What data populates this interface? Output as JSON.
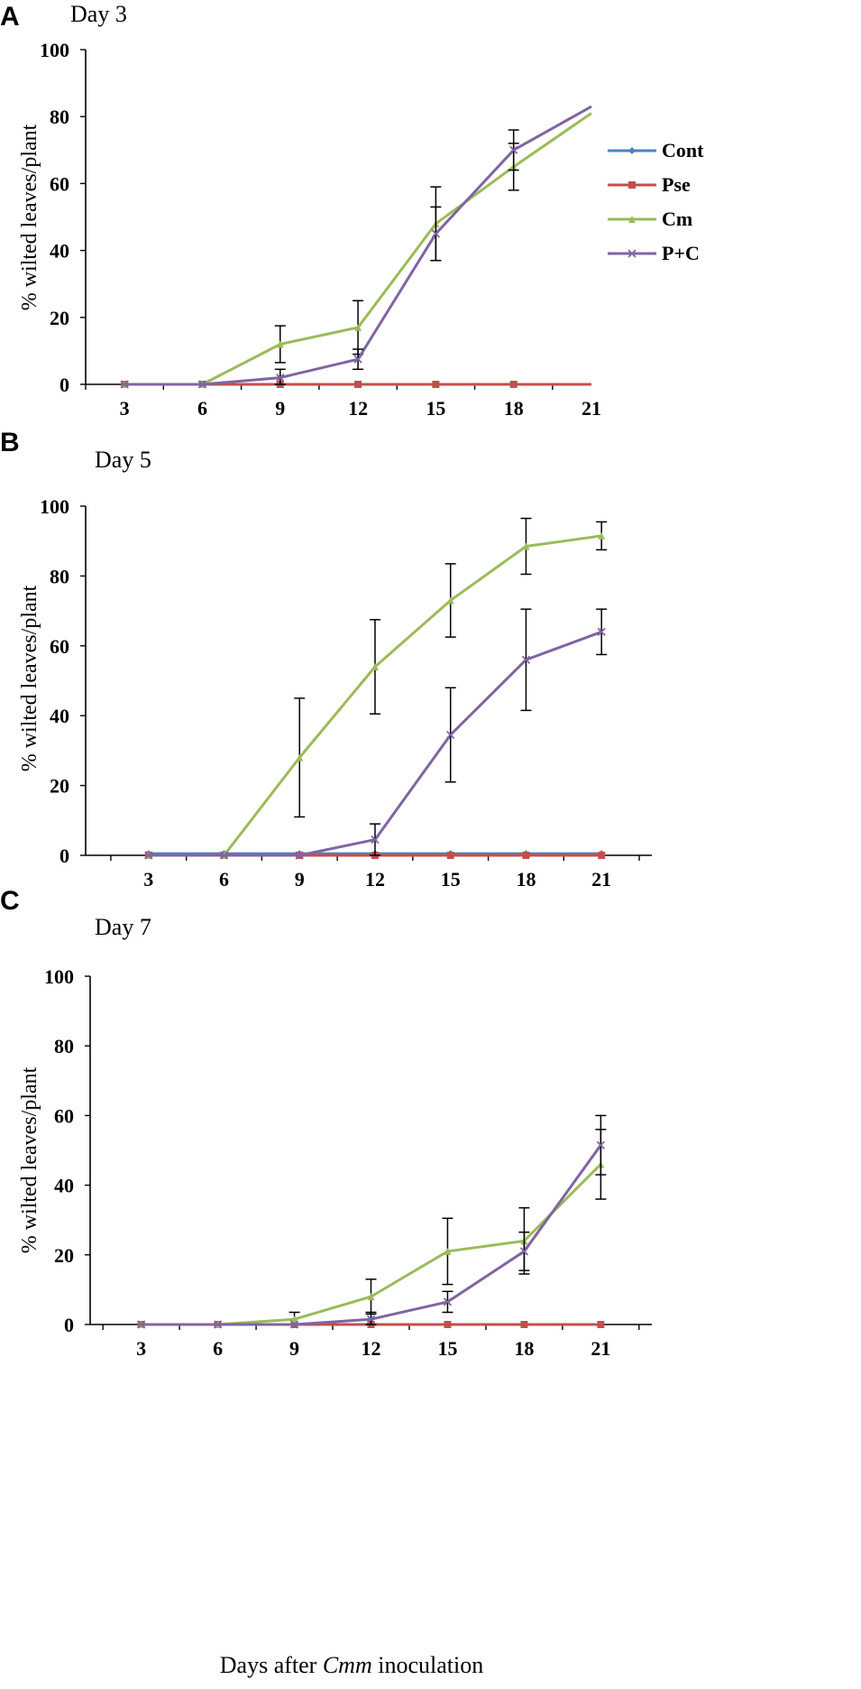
{
  "xlabel_parts": [
    "Days after ",
    "Cmm",
    " inoculation"
  ],
  "series_styles": [
    {
      "name": "Cont",
      "color": "#4f81bd",
      "marker": "diamond"
    },
    {
      "name": "Pse",
      "color": "#c0504d",
      "marker": "square"
    },
    {
      "name": "Cm",
      "color": "#9bbb59",
      "marker": "triangle"
    },
    {
      "name": "P+C",
      "color": "#8064a2",
      "marker": "x"
    }
  ],
  "chart_data": [
    {
      "type": "line",
      "panel": "A",
      "title": "Day 3",
      "ylabel": "% wilted leaves/plant",
      "xlabel": "",
      "x": [
        3,
        6,
        9,
        12,
        15,
        18,
        21
      ],
      "ylim": [
        0,
        100
      ],
      "yticks": [
        0,
        20,
        40,
        60,
        80,
        100
      ],
      "legend": {
        "position": "right",
        "entries": [
          "Cont",
          "Pse",
          "Cm",
          "P+C"
        ]
      },
      "series": [
        {
          "name": "Cont",
          "values": [
            0,
            0,
            0,
            0,
            0,
            0,
            0
          ],
          "errors": null,
          "markers_through": 18
        },
        {
          "name": "Pse",
          "values": [
            0,
            0,
            0,
            0,
            0,
            0,
            0
          ],
          "errors": null,
          "markers_through": 18
        },
        {
          "name": "Cm",
          "values": [
            0,
            0,
            12,
            17,
            48,
            65,
            81
          ],
          "errors": [
            0,
            0,
            5.5,
            8,
            11,
            7,
            0
          ],
          "markers_through": 18
        },
        {
          "name": "P+C",
          "values": [
            0,
            0,
            2,
            7.5,
            45,
            70,
            83
          ],
          "errors": [
            0,
            0,
            2.5,
            3,
            8,
            6,
            0
          ],
          "markers_through": 18
        }
      ]
    },
    {
      "type": "line",
      "panel": "B",
      "title": "Day 5",
      "ylabel": "% wilted leaves/plant",
      "xlabel": "",
      "x": [
        3,
        6,
        9,
        12,
        15,
        18,
        21
      ],
      "ylim": [
        0,
        100
      ],
      "yticks": [
        0,
        20,
        40,
        60,
        80,
        100
      ],
      "legend": null,
      "series": [
        {
          "name": "Cont",
          "values": [
            0.5,
            0.5,
            0.5,
            0.5,
            0.5,
            0.5,
            0.5
          ],
          "errors": null,
          "markers_through": 21
        },
        {
          "name": "Pse",
          "values": [
            0,
            0,
            0,
            0,
            0,
            0,
            0
          ],
          "errors": null,
          "markers_through": 21
        },
        {
          "name": "Cm",
          "values": [
            0,
            0,
            28,
            54,
            73,
            88.5,
            91.5
          ],
          "errors": [
            0,
            0,
            17,
            13.5,
            10.5,
            8,
            4
          ],
          "markers_through": 21
        },
        {
          "name": "P+C",
          "values": [
            0,
            0,
            0,
            4.5,
            34.5,
            56,
            64
          ],
          "errors": [
            0,
            0,
            0,
            4.5,
            13.5,
            14.5,
            6.5
          ],
          "markers_through": 21
        }
      ]
    },
    {
      "type": "line",
      "panel": "C",
      "title": "Day 7",
      "ylabel": "% wilted leaves/plant",
      "xlabel": "",
      "x": [
        3,
        6,
        9,
        12,
        15,
        18,
        21
      ],
      "ylim": [
        0,
        100
      ],
      "yticks": [
        0,
        20,
        40,
        60,
        80,
        100
      ],
      "legend": null,
      "series": [
        {
          "name": "Cont",
          "values": [
            0,
            0,
            0,
            0,
            0,
            0,
            0
          ],
          "errors": null,
          "markers_through": 21
        },
        {
          "name": "Pse",
          "values": [
            0,
            0,
            0,
            0,
            0,
            0,
            0
          ],
          "errors": null,
          "markers_through": 21
        },
        {
          "name": "Cm",
          "values": [
            0,
            0,
            1.5,
            8,
            21,
            24,
            46
          ],
          "errors": [
            0,
            0,
            2,
            5,
            9.5,
            9.5,
            10
          ],
          "markers_through": 21
        },
        {
          "name": "P+C",
          "values": [
            0,
            0,
            0,
            1.5,
            6.5,
            21,
            51.5
          ],
          "errors": [
            0,
            0,
            0,
            2,
            3,
            5.5,
            8.5
          ],
          "markers_through": 21
        }
      ]
    }
  ]
}
